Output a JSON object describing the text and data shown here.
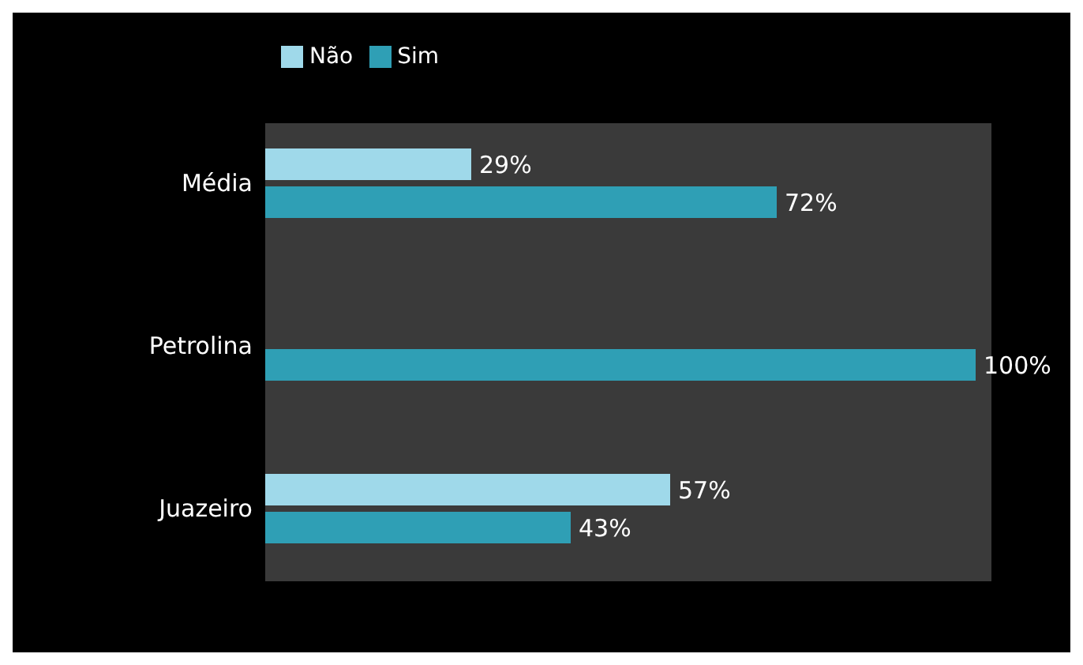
{
  "chart_data": {
    "type": "bar",
    "orientation": "horizontal",
    "categories": [
      "Média",
      "Petrolina",
      "Juazeiro"
    ],
    "series": [
      {
        "name": "Não",
        "color": "#9fd9ea",
        "values": [
          29,
          null,
          57
        ],
        "value_labels": [
          "29%",
          null,
          "57%"
        ]
      },
      {
        "name": "Sim",
        "color": "#2f9fb5",
        "values": [
          72,
          100,
          43
        ],
        "value_labels": [
          "72%",
          "100%",
          "43%"
        ]
      }
    ],
    "xlim": [
      0,
      100
    ],
    "tick_labels": "y",
    "legend": "top left"
  }
}
